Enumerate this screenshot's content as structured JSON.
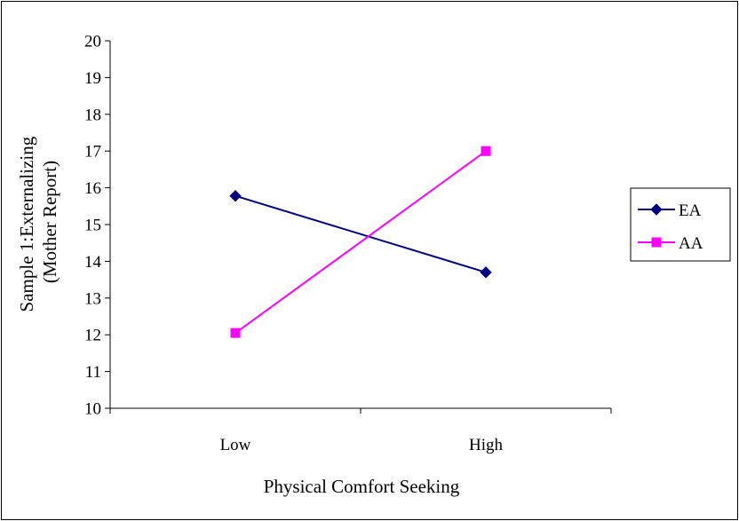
{
  "chart_data": {
    "type": "line",
    "categories": [
      "Low",
      "High"
    ],
    "series": [
      {
        "name": "EA",
        "values": [
          15.78,
          13.7
        ],
        "color": "#000080",
        "marker": "diamond"
      },
      {
        "name": "AA",
        "values": [
          12.05,
          17.0
        ],
        "color": "#FF00FF",
        "marker": "square"
      }
    ],
    "title": "",
    "xlabel": "Physical Comfort Seeking",
    "ylabel_lines": [
      "Sample 1:Externalizing",
      "(Mother Report)"
    ],
    "ylim": [
      10,
      20
    ],
    "yticks": [
      10,
      11,
      12,
      13,
      14,
      15,
      16,
      17,
      18,
      19,
      20
    ],
    "grid": false,
    "legend": "right"
  }
}
